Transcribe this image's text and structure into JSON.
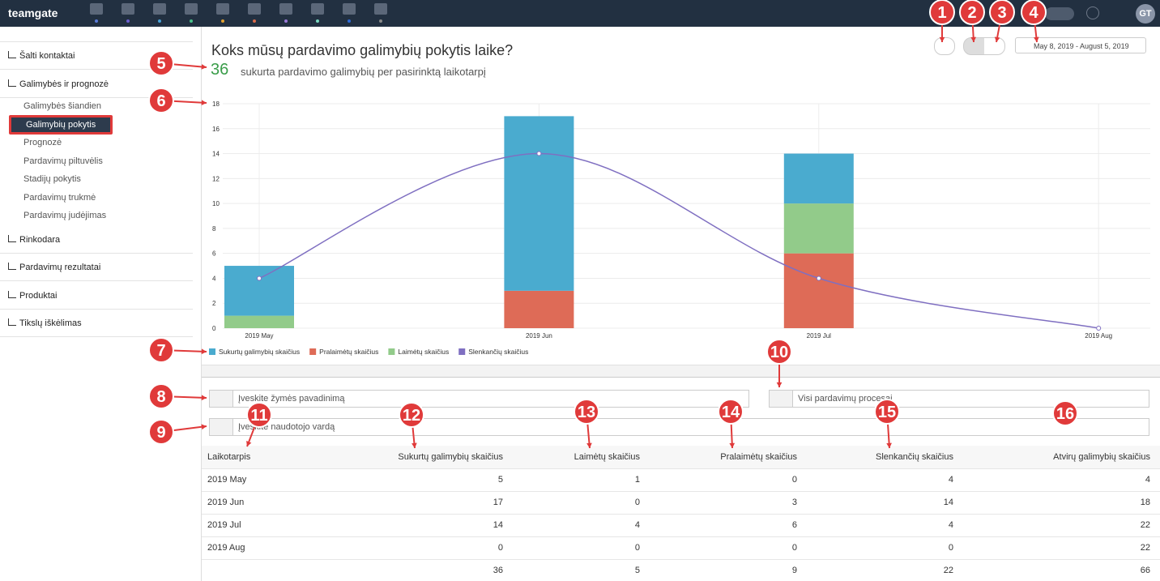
{
  "nav": {
    "brand": "teamgate",
    "avatar": "GT"
  },
  "sidebar": {
    "items": [
      "Šalti kontaktai",
      "Galimybės ir prognozė",
      "Rinkodara",
      "Pardavimų rezultatai",
      "Produktai",
      "Tikslų iškėlimas"
    ],
    "sub_items": [
      "Galimybės šiandien",
      "Galimybių pokytis",
      "Prognozė",
      "Pardavimų piltuvėlis",
      "Stadijų pokytis",
      "Pardavimų trukmė",
      "Pardavimų judėjimas"
    ]
  },
  "header": {
    "title": "Koks mūsų pardavimo galimybių pokytis laike?",
    "count": 36,
    "subtitle": "sukurta pardavimo galimybių per pasirinktą laikotarpį",
    "date_range": "May 8, 2019 - August 5, 2019"
  },
  "chart_data": {
    "type": "bar",
    "categories": [
      "2019 May",
      "2019 Jun",
      "2019 Jul",
      "2019 Aug"
    ],
    "series": [
      {
        "name": "Sukurtų galimybių skaičius",
        "color": "#4aabcf",
        "values": [
          4,
          14,
          4,
          0
        ],
        "stack": true
      },
      {
        "name": "Pralaimėtų skaičius",
        "color": "#de6b57",
        "values": [
          0,
          3,
          6,
          0
        ],
        "stack": true
      },
      {
        "name": "Laimėtų skaičius",
        "color": "#92cb8a",
        "values": [
          1,
          0,
          4,
          0
        ],
        "stack": true
      },
      {
        "name": "Slenkančių skaičius",
        "color": "#7f6fc1",
        "values": [
          4,
          14,
          4,
          0
        ],
        "type": "line"
      }
    ],
    "ylim": [
      0,
      18
    ],
    "yticks": [
      0,
      2,
      4,
      6,
      8,
      10,
      12,
      14,
      16,
      18
    ],
    "grid": true
  },
  "filters": {
    "tag_placeholder": "Įveskite žymės pavadinimą",
    "user_placeholder": "Įveskite naudotojo vardą",
    "process": "Visi pardavimų procesai"
  },
  "table": {
    "headers": [
      "Laikotarpis",
      "Sukurtų galimybių skaičius",
      "Laimėtų skaičius",
      "Pralaimėtų skaičius",
      "Slenkančių skaičius",
      "Atvirų galimybių skaičius"
    ],
    "rows": [
      [
        "2019 May",
        5,
        1,
        0,
        4,
        4
      ],
      [
        "2019 Jun",
        17,
        0,
        3,
        14,
        18
      ],
      [
        "2019 Jul",
        14,
        4,
        6,
        4,
        22
      ],
      [
        "2019 Aug",
        0,
        0,
        0,
        0,
        22
      ]
    ],
    "totals": [
      36,
      5,
      9,
      22,
      66
    ]
  },
  "annotations": [
    "1",
    "2",
    "3",
    "4",
    "5",
    "6",
    "7",
    "8",
    "9",
    "10",
    "11",
    "12",
    "13",
    "14",
    "15",
    "16"
  ]
}
